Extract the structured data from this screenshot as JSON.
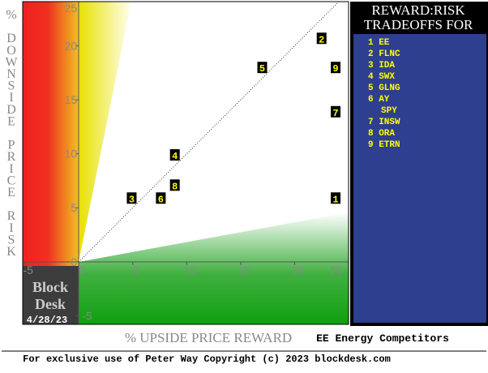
{
  "chart_data": {
    "type": "scatter",
    "x_label": "% UPSIDE PRICE REWARD",
    "y_label": "% DOWNSIDE PRICE RISK",
    "subtitle": "EE Energy Competitors",
    "footer": "For exclusive use of Peter Way Copyright (c) 2023 blockdesk.com",
    "brand": [
      "Block",
      "Desk"
    ],
    "date": "4/28/23",
    "legend_title": [
      "REWARD:RISK",
      "TRADEOFFS FOR"
    ],
    "legend_items": [
      "1 EE",
      "2 FLNC",
      "3 IDA",
      "4 SWX",
      "5 GLNG",
      "6 AY",
      "SPY",
      "7 INSW",
      "8 ORA",
      "9 ETRN"
    ],
    "point_labels": [
      "1",
      "2",
      "3",
      "4",
      "5",
      "6",
      "7",
      "8",
      "9"
    ],
    "x": [
      23.8,
      22.5,
      4.9,
      8.9,
      17,
      7.6,
      23.8,
      8.9,
      23.8
    ],
    "values": [
      5.9,
      20.7,
      5.9,
      9.9,
      18,
      5.9,
      13.9,
      7.1,
      18
    ],
    "xlim": [
      -5.2,
      25
    ],
    "ylim": [
      -5.8,
      24.1
    ],
    "xticks": [
      -5,
      0,
      5,
      10,
      15,
      20,
      25
    ],
    "yticks": [
      -5,
      0,
      5,
      10,
      15,
      20,
      25
    ],
    "marker_color": "#000000",
    "label_color": "#ffff00"
  }
}
